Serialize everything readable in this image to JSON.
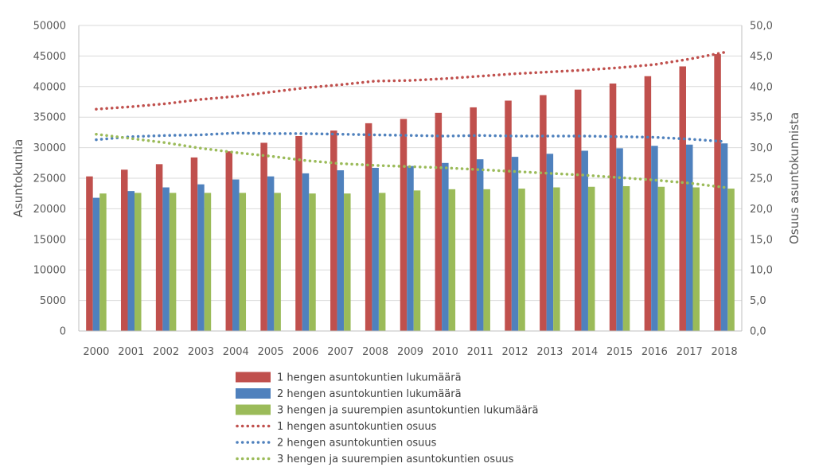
{
  "chart_data": {
    "type": "bar",
    "title": "",
    "ylabel": "Asuntokuntia",
    "y2label": "Osuus asuntokunnista",
    "ylim": [
      0,
      50000
    ],
    "y2lim": [
      0,
      50
    ],
    "yticks": [
      "0",
      "5000",
      "10000",
      "15000",
      "20000",
      "25000",
      "30000",
      "35000",
      "40000",
      "45000",
      "50000"
    ],
    "y2ticks": [
      "0,0",
      "5,0",
      "10,0",
      "15,0",
      "20,0",
      "25,0",
      "30,0",
      "35,0",
      "40,0",
      "45,0",
      "50,0"
    ],
    "categories": [
      "2000",
      "2001",
      "2002",
      "2003",
      "2004",
      "2005",
      "2006",
      "2007",
      "2008",
      "2009",
      "2010",
      "2011",
      "2012",
      "2013",
      "2014",
      "2015",
      "2016",
      "2017",
      "2018"
    ],
    "grid": true,
    "legend_position": "bottom",
    "series": [
      {
        "name": "1 hengen asuntokuntien lukumäärä",
        "kind": "bar",
        "axis": "left",
        "color": "#C0504D",
        "values": [
          25300,
          26400,
          27300,
          28400,
          29400,
          30800,
          31900,
          32800,
          34000,
          34700,
          35700,
          36600,
          37700,
          38600,
          39500,
          40500,
          41700,
          43300,
          45300
        ]
      },
      {
        "name": "2 hengen asuntokuntien lukumäärä",
        "kind": "bar",
        "axis": "left",
        "color": "#4F81BD",
        "values": [
          21800,
          22900,
          23500,
          24000,
          24800,
          25300,
          25800,
          26300,
          26700,
          27000,
          27500,
          28100,
          28500,
          29000,
          29500,
          29900,
          30300,
          30500,
          30700
        ]
      },
      {
        "name": "3 hengen ja suurempien asuntokuntien lukumäärä",
        "kind": "bar",
        "axis": "left",
        "color": "#9BBB59",
        "values": [
          22500,
          22600,
          22600,
          22600,
          22600,
          22600,
          22500,
          22500,
          22600,
          23000,
          23200,
          23200,
          23300,
          23500,
          23600,
          23700,
          23600,
          23500,
          23300
        ]
      },
      {
        "name": "1 hengen asuntokuntien osuus",
        "kind": "line",
        "axis": "right",
        "color": "#C0504D",
        "values": [
          36.3,
          36.7,
          37.2,
          37.9,
          38.4,
          39.1,
          39.8,
          40.3,
          40.9,
          41.0,
          41.3,
          41.7,
          42.1,
          42.4,
          42.7,
          43.1,
          43.6,
          44.5,
          45.6
        ]
      },
      {
        "name": "2 hengen asuntokuntien osuus",
        "kind": "line",
        "axis": "right",
        "color": "#4F81BD",
        "values": [
          31.3,
          31.8,
          32.0,
          32.1,
          32.4,
          32.3,
          32.3,
          32.2,
          32.1,
          32.0,
          31.9,
          32.0,
          31.9,
          31.9,
          31.9,
          31.8,
          31.7,
          31.4,
          31.0
        ]
      },
      {
        "name": "3 hengen ja suurempien asuntokuntien osuus",
        "kind": "line",
        "axis": "right",
        "color": "#9BBB59",
        "values": [
          32.2,
          31.5,
          30.8,
          29.9,
          29.2,
          28.6,
          27.9,
          27.4,
          27.1,
          26.9,
          26.7,
          26.4,
          26.1,
          25.8,
          25.5,
          25.1,
          24.7,
          24.2,
          23.5
        ]
      }
    ]
  }
}
